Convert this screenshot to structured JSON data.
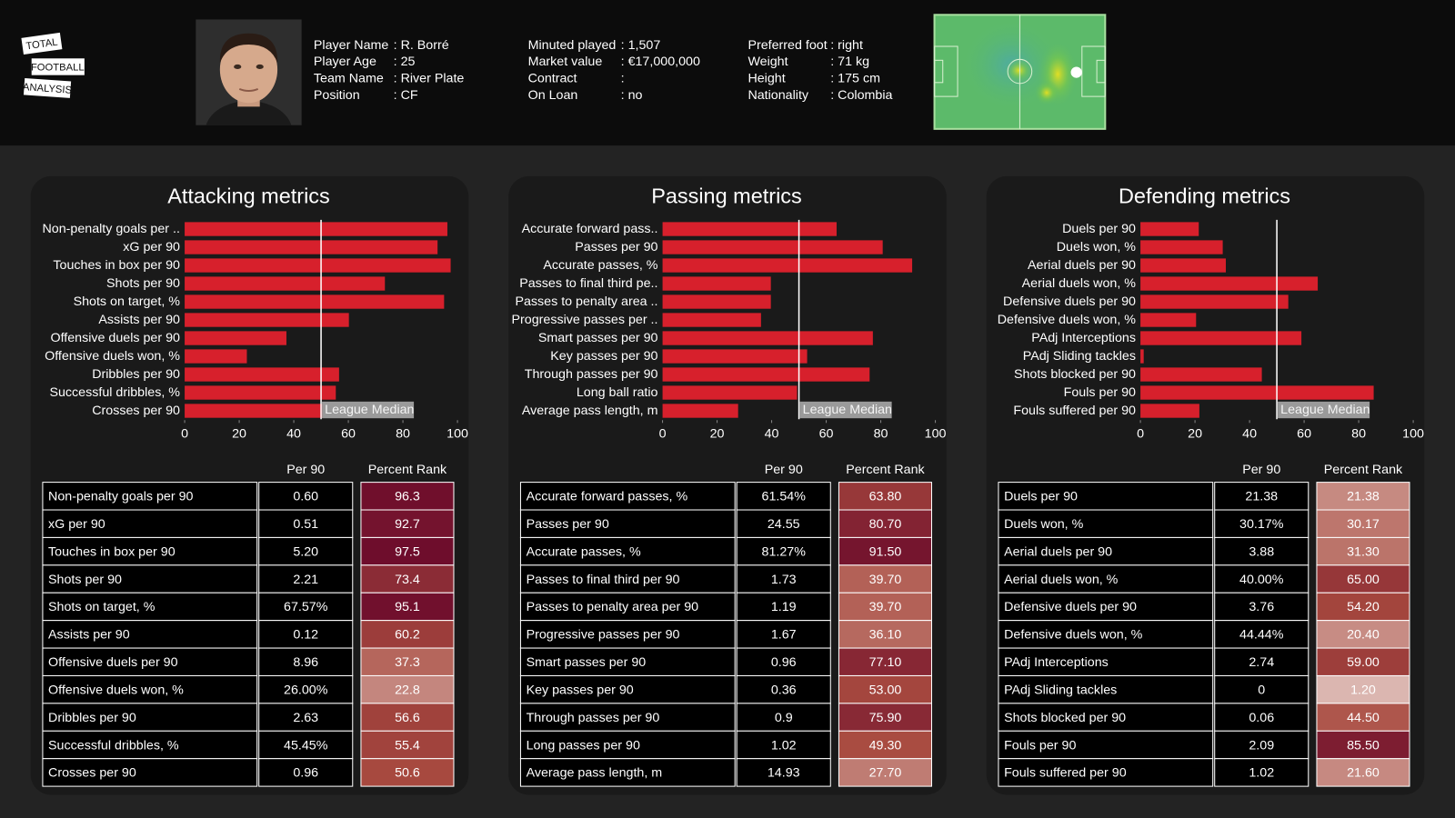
{
  "header": {
    "logo": [
      "TOTAL",
      "FOOTBALL",
      "ANALYSIS"
    ],
    "info": [
      [
        [
          "Player Name",
          ": R. Borré"
        ],
        [
          "Player Age",
          ": 25"
        ],
        [
          "Team Name",
          ": River Plate"
        ],
        [
          "Position",
          ": CF"
        ]
      ],
      [
        [
          "Minuted played",
          ": 1,507"
        ],
        [
          "Market value",
          ": €17,000,000"
        ],
        [
          "Contract",
          ":"
        ],
        [
          "On Loan",
          ": no"
        ]
      ],
      [
        [
          "Preferred foot",
          ": right"
        ],
        [
          "Weight",
          ": 71 kg"
        ],
        [
          "Height",
          ": 175 cm"
        ],
        [
          "Nationality",
          ": Colombia"
        ]
      ]
    ]
  },
  "chart_data": [
    {
      "type": "bar",
      "orientation": "horizontal",
      "title": "Attacking metrics",
      "color": "#d7202c",
      "categories": [
        "Non-penalty goals per ..",
        "xG per 90",
        "Touches in box per 90",
        "Shots per 90",
        "Shots on target, %",
        "Assists per 90",
        "Offensive duels per 90",
        "Offensive duels won, %",
        "Dribbles per 90",
        "Successful dribbles, %",
        "Crosses per 90"
      ],
      "values": [
        96.3,
        92.7,
        97.5,
        73.4,
        95.1,
        60.2,
        37.3,
        22.8,
        56.6,
        55.4,
        50.6
      ],
      "xlim": [
        0,
        100
      ],
      "xticks": [
        0,
        20,
        40,
        60,
        80,
        100
      ],
      "median": 50,
      "median_label": "League Median"
    },
    {
      "type": "bar",
      "orientation": "horizontal",
      "title": "Passing metrics",
      "color": "#d7202c",
      "categories": [
        "Accurate forward pass..",
        "Passes per 90",
        "Accurate passes, %",
        "Passes to final third pe..",
        "Passes to penalty area ..",
        "Progressive passes per ..",
        "Smart passes per 90",
        "Key passes per 90",
        "Through passes per 90",
        "Long ball ratio",
        "Average pass length, m"
      ],
      "values": [
        63.8,
        80.7,
        91.5,
        39.7,
        39.7,
        36.1,
        77.1,
        53.0,
        75.9,
        49.3,
        27.7
      ],
      "xlim": [
        0,
        100
      ],
      "xticks": [
        0,
        20,
        40,
        60,
        80,
        100
      ],
      "median": 50,
      "median_label": "League Median"
    },
    {
      "type": "bar",
      "orientation": "horizontal",
      "title": "Defending metrics",
      "color": "#d7202c",
      "categories": [
        "Duels per 90",
        "Duels won, %",
        "Aerial duels per 90",
        "Aerial duels won, %",
        "Defensive duels per 90",
        "Defensive duels won, %",
        "PAdj Interceptions",
        "PAdj Sliding tackles",
        "Shots blocked per 90",
        "Fouls per 90",
        "Fouls suffered per 90"
      ],
      "values": [
        21.38,
        30.17,
        31.3,
        65.0,
        54.2,
        20.4,
        59.0,
        1.2,
        44.5,
        85.5,
        21.6
      ],
      "xlim": [
        0,
        100
      ],
      "xticks": [
        0,
        20,
        40,
        60,
        80,
        100
      ],
      "median": 50,
      "median_label": "League Median"
    }
  ],
  "rank_colormap": [
    "#dcb9b3",
    "#a84a3f",
    "#6b0a2b"
  ],
  "tables": [
    {
      "columns": [
        "Per 90",
        "Percent Rank"
      ],
      "rows": [
        [
          "Non-penalty goals per 90",
          "0.60",
          "96.3"
        ],
        [
          "xG per 90",
          "0.51",
          "92.7"
        ],
        [
          "Touches in box per 90",
          "5.20",
          "97.5"
        ],
        [
          "Shots per 90",
          "2.21",
          "73.4"
        ],
        [
          "Shots on target, %",
          "67.57%",
          "95.1"
        ],
        [
          "Assists per 90",
          "0.12",
          "60.2"
        ],
        [
          "Offensive duels per 90",
          "8.96",
          "37.3"
        ],
        [
          "Offensive duels won, %",
          "26.00%",
          "22.8"
        ],
        [
          "Dribbles per 90",
          "2.63",
          "56.6"
        ],
        [
          "Successful dribbles, %",
          "45.45%",
          "55.4"
        ],
        [
          "Crosses per 90",
          "0.96",
          "50.6"
        ]
      ]
    },
    {
      "columns": [
        "Per 90",
        "Percent Rank"
      ],
      "rows": [
        [
          "Accurate forward passes, %",
          "61.54%",
          "63.80"
        ],
        [
          "Passes per 90",
          "24.55",
          "80.70"
        ],
        [
          "Accurate passes, %",
          "81.27%",
          "91.50"
        ],
        [
          "Passes to final third per 90",
          "1.73",
          "39.70"
        ],
        [
          "Passes to penalty area per 90",
          "1.19",
          "39.70"
        ],
        [
          "Progressive passes per 90",
          "1.67",
          "36.10"
        ],
        [
          "Smart passes per 90",
          "0.96",
          "77.10"
        ],
        [
          "Key passes per 90",
          "0.36",
          "53.00"
        ],
        [
          "Through passes per 90",
          "0.9",
          "75.90"
        ],
        [
          "Long passes per 90",
          "1.02",
          "49.30"
        ],
        [
          "Average pass length, m",
          "14.93",
          "27.70"
        ]
      ]
    },
    {
      "columns": [
        "Per 90",
        "Percent Rank"
      ],
      "rows": [
        [
          "Duels per 90",
          "21.38",
          "21.38"
        ],
        [
          "Duels won, %",
          "30.17%",
          "30.17"
        ],
        [
          "Aerial duels per 90",
          "3.88",
          "31.30"
        ],
        [
          "Aerial duels won, %",
          "40.00%",
          "65.00"
        ],
        [
          "Defensive duels per 90",
          "3.76",
          "54.20"
        ],
        [
          "Defensive duels won, %",
          "44.44%",
          "20.40"
        ],
        [
          "PAdj Interceptions",
          "2.74",
          "59.00"
        ],
        [
          "PAdj Sliding tackles",
          "0",
          "1.20"
        ],
        [
          "Shots blocked per 90",
          "0.06",
          "44.50"
        ],
        [
          "Fouls per 90",
          "2.09",
          "85.50"
        ],
        [
          "Fouls suffered per 90",
          "1.02",
          "21.60"
        ]
      ]
    }
  ]
}
